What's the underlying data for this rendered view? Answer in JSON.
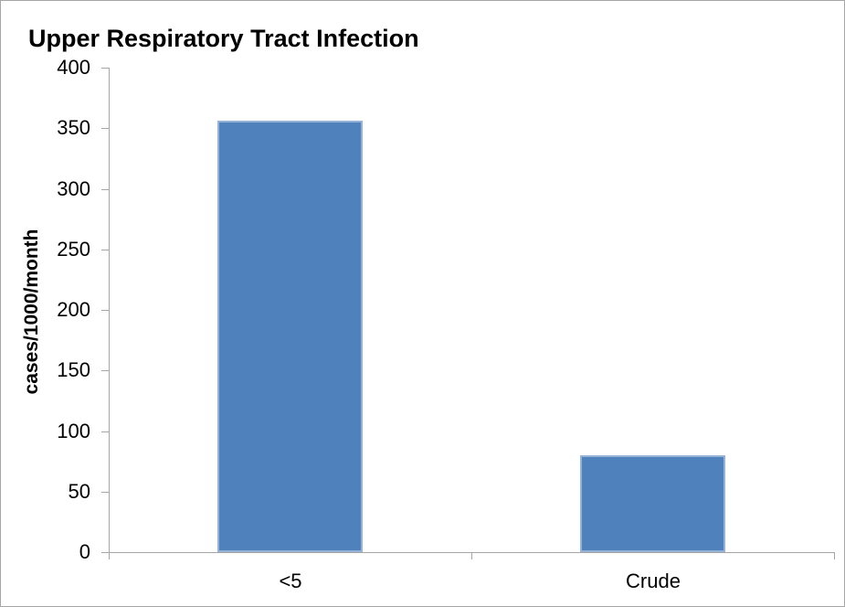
{
  "window": {
    "background_color": "#ffffff",
    "frame_border_color": "#a6a6a6"
  },
  "chart_data": {
    "type": "bar",
    "title": "Upper Respiratory Tract Infection",
    "xlabel": "",
    "ylabel": "cases/1000/month",
    "categories": [
      "<5",
      "Crude"
    ],
    "values": [
      356,
      80
    ],
    "ylim": [
      0,
      400
    ],
    "yticks": [
      0,
      50,
      100,
      150,
      200,
      250,
      300,
      350,
      400
    ],
    "grid": false,
    "legend_position": "none",
    "bar_color": "#4F81BD",
    "bar_border_color": "#95B3D7",
    "axis_color": "#A6A6A6",
    "text_color": "#000000"
  }
}
